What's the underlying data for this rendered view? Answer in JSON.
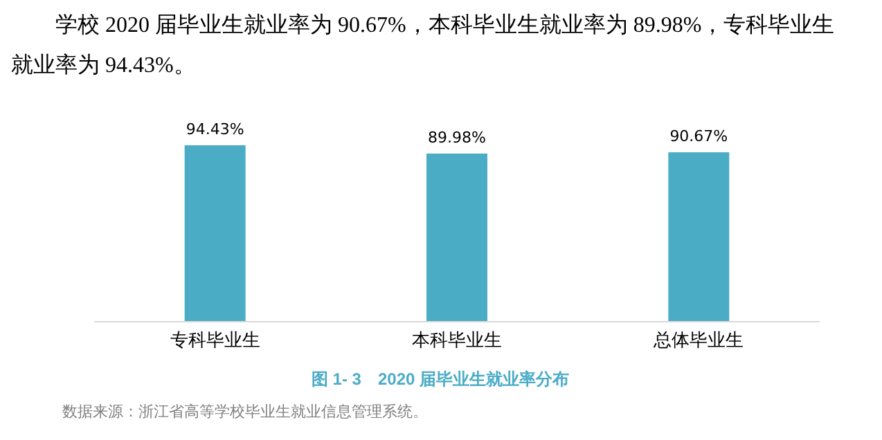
{
  "chart_data": {
    "type": "bar",
    "subtitle": "学校 2020 届毕业生就业率为 90.67%，本科毕业生就业率为 89.98%，专科毕业生就业率为 94.43%。",
    "title": "图 1- 3　2020 届毕业生就业率分布",
    "categories": [
      "专科毕业生",
      "本科毕业生",
      "总体毕业生"
    ],
    "values": [
      94.43,
      89.98,
      90.67
    ],
    "value_labels": [
      "94.43%",
      "89.98%",
      "90.67%"
    ],
    "color": "#4bacc6",
    "tick_labels": "x",
    "annotations": [
      "数据来源：浙江省高等学校毕业生就业信息管理系统。"
    ]
  }
}
